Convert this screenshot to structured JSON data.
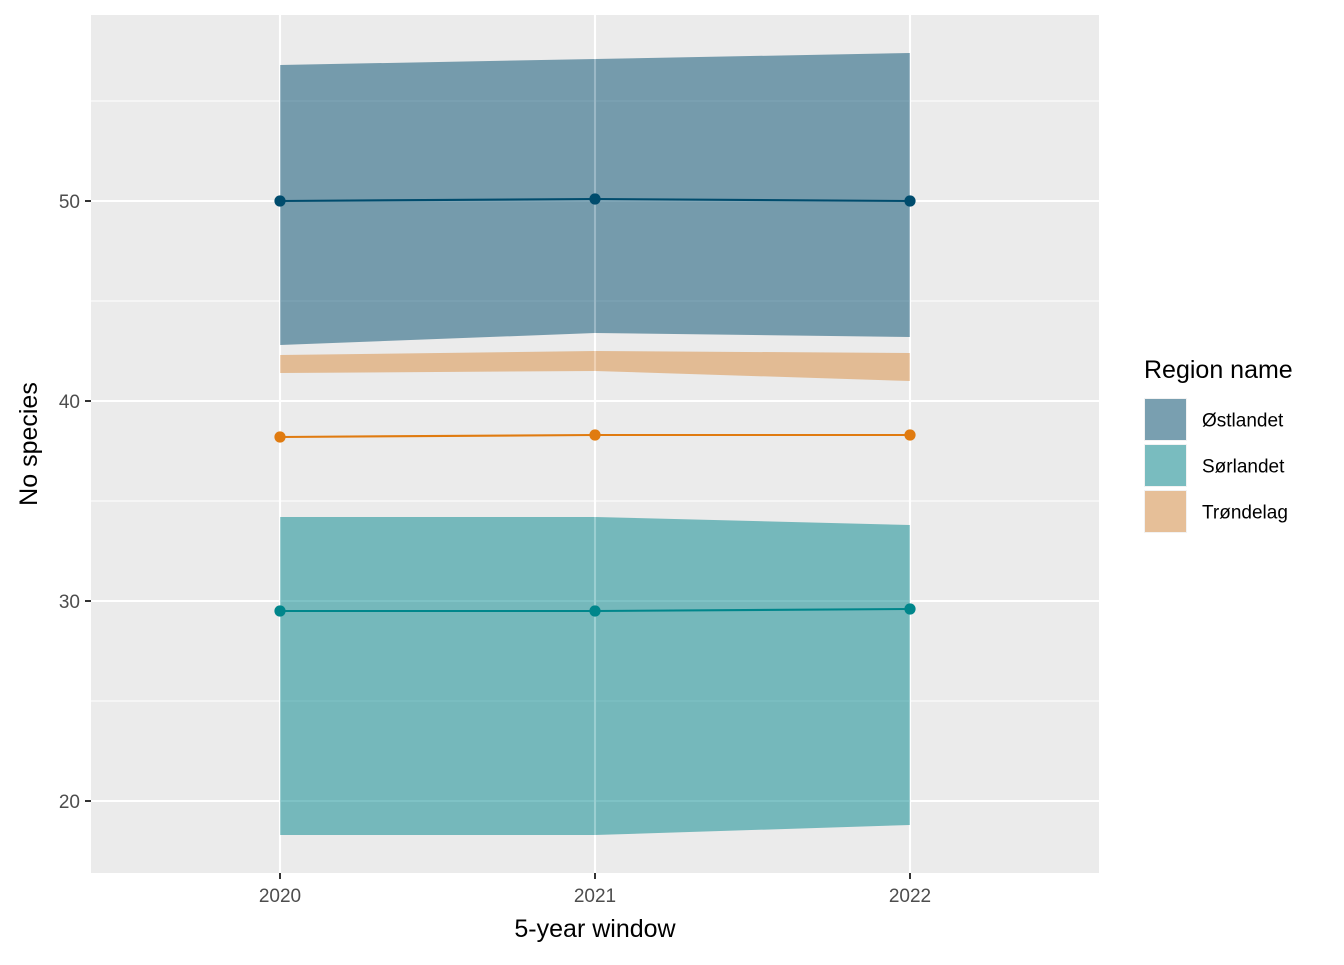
{
  "chart_data": {
    "type": "line",
    "xlabel": "5-year window",
    "ylabel": "No species",
    "x": [
      2020,
      2021,
      2022
    ],
    "x_ticks": [
      "2020",
      "2021",
      "2022"
    ],
    "xlim": [
      2019.4,
      2022.6
    ],
    "y_ticks": [
      20,
      30,
      40,
      50
    ],
    "ylim": [
      16.4,
      59.3
    ],
    "grid": true,
    "ribbon_opacity": 0.5,
    "legend": {
      "title": "Region name",
      "placement": "right",
      "entries": [
        "Østlandet",
        "Sørlandet",
        "Trøndelag"
      ]
    },
    "series": [
      {
        "name": "Østlandet",
        "color": "#004c6d",
        "values": [
          50.0,
          50.1,
          50.0
        ],
        "lower": [
          42.8,
          43.4,
          43.2
        ],
        "upper": [
          56.8,
          57.1,
          57.4
        ]
      },
      {
        "name": "Sørlandet",
        "color": "#00868b",
        "values": [
          29.5,
          29.5,
          29.6
        ],
        "lower": [
          18.3,
          18.3,
          18.8
        ],
        "upper": [
          34.2,
          34.2,
          33.8
        ]
      },
      {
        "name": "Trøndelag",
        "color": "#e07b10",
        "values": [
          38.2,
          38.3,
          38.3
        ],
        "lower": [
          41.4,
          41.5,
          41.0
        ],
        "upper": [
          42.3,
          42.5,
          42.4
        ],
        "band_fill": "#d98b3e"
      }
    ]
  }
}
